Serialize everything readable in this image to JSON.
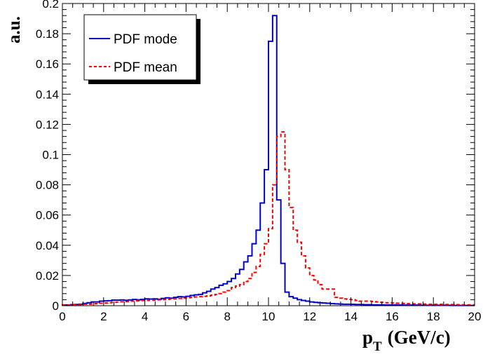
{
  "chart_data": {
    "type": "line",
    "title": "",
    "xlabel_main": "p",
    "xlabel_sub": "T",
    "xlabel_unit": "(GeV/c)",
    "ylabel": "a.u.",
    "xlim": [
      0,
      20
    ],
    "ylim": [
      0,
      0.2
    ],
    "xticks": [
      "0",
      "2",
      "4",
      "6",
      "8",
      "10",
      "12",
      "14",
      "16",
      "18",
      "20"
    ],
    "yticks": [
      "0",
      "0.02",
      "0.04",
      "0.06",
      "0.08",
      "0.1",
      "0.12",
      "0.14",
      "0.16",
      "0.18",
      "0.2"
    ],
    "grid": false,
    "legend_position": "top-left",
    "bin_width": 0.2,
    "x": [
      0.0,
      0.2,
      0.4,
      0.6,
      0.8,
      1.0,
      1.2,
      1.4,
      1.6,
      1.8,
      2.0,
      2.2,
      2.4,
      2.6,
      2.8,
      3.0,
      3.2,
      3.4,
      3.6,
      3.8,
      4.0,
      4.2,
      4.4,
      4.6,
      4.8,
      5.0,
      5.2,
      5.4,
      5.6,
      5.8,
      6.0,
      6.2,
      6.4,
      6.6,
      6.8,
      7.0,
      7.2,
      7.4,
      7.6,
      7.8,
      8.0,
      8.2,
      8.4,
      8.6,
      8.8,
      9.0,
      9.2,
      9.4,
      9.6,
      9.8,
      10.0,
      10.2,
      10.4,
      10.6,
      10.8,
      11.0,
      11.2,
      11.4,
      11.6,
      11.8,
      12.0,
      12.2,
      12.4,
      12.6,
      12.8,
      13.0,
      13.2,
      13.4,
      13.6,
      13.8,
      14.0,
      14.2,
      14.4,
      14.6,
      14.8,
      15.0,
      15.2,
      15.4,
      15.6,
      15.8,
      16.0,
      16.2,
      16.4,
      16.6,
      16.8,
      17.0,
      17.2,
      17.4,
      17.6,
      17.8,
      18.0,
      18.2,
      18.4,
      18.6,
      18.8,
      19.0,
      19.2,
      19.4,
      19.6,
      19.8
    ],
    "series": [
      {
        "name": "PDF mode",
        "color": "#0000cc",
        "dash": "solid",
        "values": [
          0.0005,
          0.0005,
          0.0007,
          0.0008,
          0.001,
          0.0015,
          0.002,
          0.0025,
          0.0025,
          0.003,
          0.0032,
          0.0033,
          0.0037,
          0.0037,
          0.0038,
          0.0036,
          0.0038,
          0.0041,
          0.0039,
          0.0042,
          0.0045,
          0.0044,
          0.0045,
          0.0043,
          0.0048,
          0.0052,
          0.005,
          0.0055,
          0.006,
          0.0058,
          0.0062,
          0.0068,
          0.0072,
          0.0075,
          0.0085,
          0.0095,
          0.011,
          0.012,
          0.0135,
          0.0145,
          0.016,
          0.018,
          0.021,
          0.024,
          0.029,
          0.033,
          0.041,
          0.05,
          0.068,
          0.09,
          0.175,
          0.192,
          0.07,
          0.028,
          0.009,
          0.006,
          0.005,
          0.004,
          0.0035,
          0.003,
          0.0025,
          0.0022,
          0.002,
          0.0018,
          0.0016,
          0.0014,
          0.0012,
          0.0011,
          0.001,
          0.001,
          0.0009,
          0.0008,
          0.0008,
          0.0007,
          0.0007,
          0.0006,
          0.0006,
          0.0006,
          0.0005,
          0.0005,
          0.0005,
          0.0005,
          0.0004,
          0.0004,
          0.0004,
          0.0004,
          0.0004,
          0.0003,
          0.0003,
          0.0003,
          0.0003,
          0.0003,
          0.0003,
          0.0003,
          0.0002,
          0.0002,
          0.0002,
          0.0002,
          0.0002,
          0.0002
        ]
      },
      {
        "name": "PDF mean",
        "color": "#ff0000",
        "dash": "dashed",
        "values": [
          0.0004,
          0.0004,
          0.0005,
          0.0006,
          0.0007,
          0.0009,
          0.001,
          0.0012,
          0.0014,
          0.0016,
          0.0018,
          0.002,
          0.0022,
          0.0024,
          0.0026,
          0.0028,
          0.003,
          0.003,
          0.0032,
          0.0034,
          0.0035,
          0.0036,
          0.0037,
          0.0039,
          0.004,
          0.0042,
          0.0044,
          0.0046,
          0.0048,
          0.005,
          0.0052,
          0.0055,
          0.0058,
          0.006,
          0.0062,
          0.0065,
          0.007,
          0.0075,
          0.008,
          0.009,
          0.01,
          0.012,
          0.013,
          0.014,
          0.016,
          0.018,
          0.022,
          0.026,
          0.034,
          0.041,
          0.051,
          0.08,
          0.112,
          0.115,
          0.09,
          0.065,
          0.05,
          0.042,
          0.033,
          0.025,
          0.02,
          0.017,
          0.014,
          0.011,
          0.011,
          0.011,
          0.0055,
          0.005,
          0.0045,
          0.0042,
          0.004,
          0.0035,
          0.003,
          0.003,
          0.003,
          0.0028,
          0.0025,
          0.0022,
          0.002,
          0.0019,
          0.0018,
          0.0016,
          0.0015,
          0.0014,
          0.0013,
          0.0012,
          0.0012,
          0.0011,
          0.001,
          0.001,
          0.0009,
          0.0009,
          0.0008,
          0.0008,
          0.0008,
          0.0007,
          0.0007,
          0.0006,
          0.0006,
          0.0006
        ]
      }
    ]
  }
}
